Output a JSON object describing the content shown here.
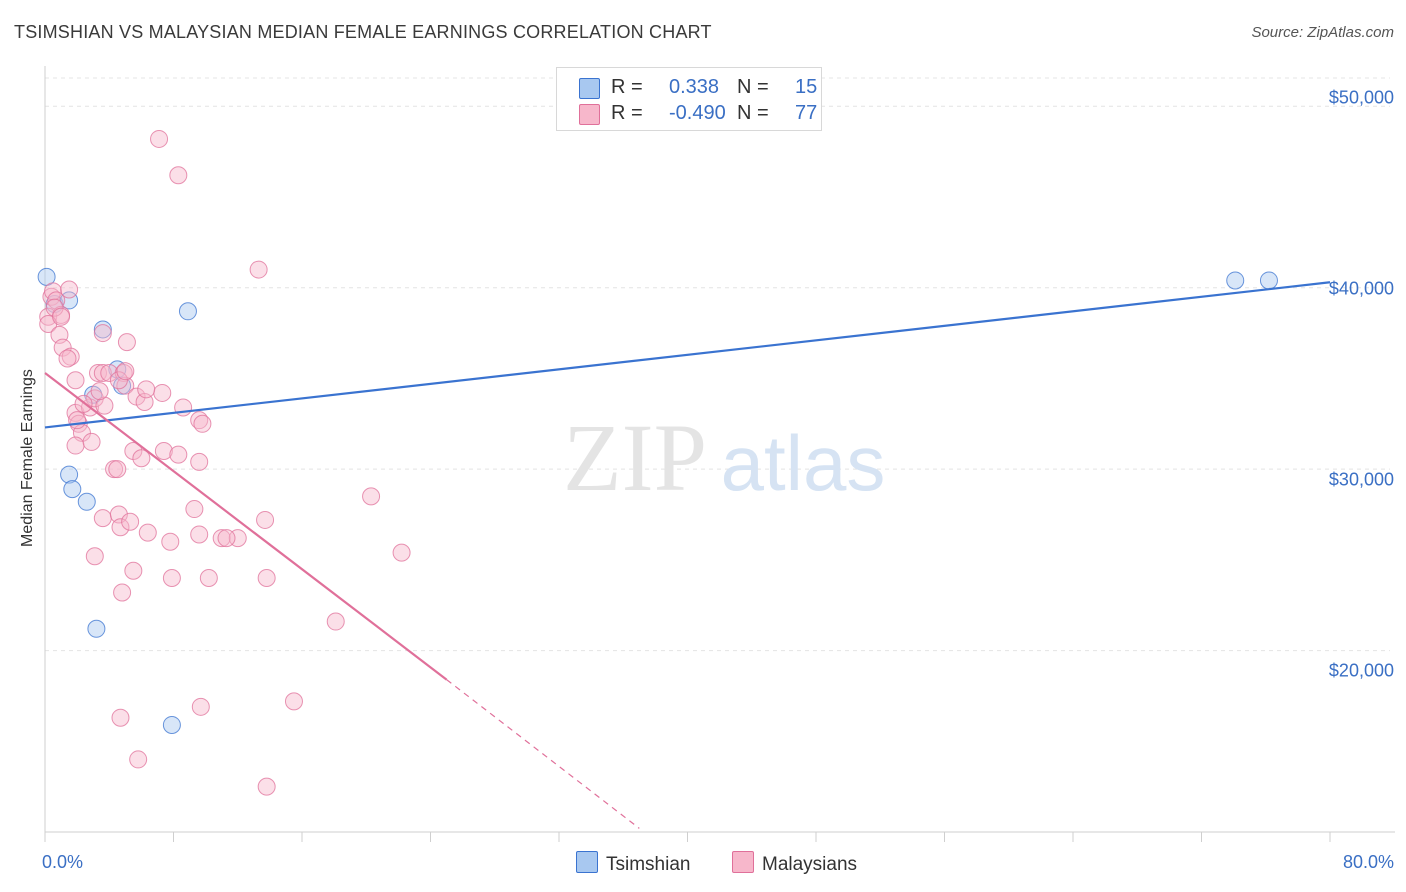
{
  "chart_data": {
    "type": "scatter",
    "title": "TSIMSHIAN VS MALAYSIAN MEDIAN FEMALE EARNINGS CORRELATION CHART",
    "source": "Source: ZipAtlas.com",
    "ylabel": "Median Female Earnings",
    "x_min_label": "0.0%",
    "x_max_label": "80.0%",
    "xlim": [
      0,
      80
    ],
    "ylim": [
      10000,
      52000
    ],
    "y_ticks": [
      {
        "value": 20000,
        "label": "$20,000"
      },
      {
        "value": 30000,
        "label": "$30,000"
      },
      {
        "value": 40000,
        "label": "$40,000"
      },
      {
        "value": 50000,
        "label": "$50,000"
      }
    ],
    "watermark": {
      "zip": "ZIP",
      "atlas": "atlas"
    },
    "legend_stats": [
      {
        "r_label": "R =",
        "r_value": "0.338",
        "n_label": "N =",
        "n_value": "15",
        "color": "#a8c8f0"
      },
      {
        "r_label": "R =",
        "r_value": "-0.490",
        "n_label": "N =",
        "n_value": "77",
        "color": "#f7b7cb"
      }
    ],
    "series": [
      {
        "name": "Tsimshian",
        "color": "#3a73d0",
        "fill": "#a8c8f0",
        "trend": {
          "x0": 0,
          "y0": 32300,
          "x1": 80,
          "y1": 40300
        },
        "points": [
          [
            0.1,
            40600
          ],
          [
            0.6,
            39100
          ],
          [
            1.5,
            39300
          ],
          [
            3.6,
            37700
          ],
          [
            8.9,
            38700
          ],
          [
            4.5,
            35500
          ],
          [
            4.8,
            34600
          ],
          [
            3.0,
            34100
          ],
          [
            1.5,
            29700
          ],
          [
            1.7,
            28900
          ],
          [
            2.6,
            28200
          ],
          [
            3.2,
            21200
          ],
          [
            7.9,
            15900
          ],
          [
            74.1,
            40400
          ],
          [
            76.2,
            40400
          ]
        ]
      },
      {
        "name": "Malaysians",
        "color": "#e0709a",
        "fill": "#f7b7cb",
        "trend": {
          "x0": 0,
          "y0": 35300,
          "x1": 25,
          "y1": 18400,
          "dash_x1": 37,
          "dash_y1": 10200
        },
        "points": [
          [
            0.2,
            38400
          ],
          [
            0.4,
            39500
          ],
          [
            0.5,
            39800
          ],
          [
            0.7,
            39300
          ],
          [
            1.0,
            38500
          ],
          [
            0.2,
            38000
          ],
          [
            1.5,
            39900
          ],
          [
            0.9,
            37400
          ],
          [
            1.1,
            36700
          ],
          [
            1.6,
            36200
          ],
          [
            1.9,
            34900
          ],
          [
            1.9,
            33100
          ],
          [
            2.1,
            32500
          ],
          [
            2.3,
            32000
          ],
          [
            1.9,
            31300
          ],
          [
            2.8,
            33400
          ],
          [
            2.9,
            31500
          ],
          [
            3.1,
            33900
          ],
          [
            3.7,
            33500
          ],
          [
            3.6,
            37500
          ],
          [
            3.3,
            35300
          ],
          [
            3.6,
            35300
          ],
          [
            4.0,
            35300
          ],
          [
            4.9,
            35300
          ],
          [
            5.0,
            34600
          ],
          [
            5.1,
            37000
          ],
          [
            5.7,
            34000
          ],
          [
            6.2,
            33700
          ],
          [
            7.3,
            34200
          ],
          [
            7.4,
            31000
          ],
          [
            8.6,
            33400
          ],
          [
            9.6,
            32700
          ],
          [
            9.8,
            32500
          ],
          [
            5.5,
            31000
          ],
          [
            6.0,
            30600
          ],
          [
            9.6,
            30400
          ],
          [
            4.3,
            30000
          ],
          [
            4.5,
            30000
          ],
          [
            3.6,
            27300
          ],
          [
            4.6,
            27500
          ],
          [
            4.7,
            26800
          ],
          [
            5.3,
            27100
          ],
          [
            6.4,
            26500
          ],
          [
            7.8,
            26000
          ],
          [
            9.6,
            26400
          ],
          [
            11.0,
            26200
          ],
          [
            12.0,
            26200
          ],
          [
            13.7,
            27200
          ],
          [
            9.3,
            27800
          ],
          [
            8.3,
            30800
          ],
          [
            11.3,
            26200
          ],
          [
            20.3,
            28500
          ],
          [
            3.1,
            25200
          ],
          [
            5.5,
            24400
          ],
          [
            7.9,
            24000
          ],
          [
            10.2,
            24000
          ],
          [
            13.8,
            24000
          ],
          [
            22.2,
            25400
          ],
          [
            4.8,
            23200
          ],
          [
            18.1,
            21600
          ],
          [
            15.5,
            17200
          ],
          [
            9.7,
            16900
          ],
          [
            4.7,
            16300
          ],
          [
            5.8,
            14000
          ],
          [
            13.8,
            12500
          ],
          [
            7.1,
            48200
          ],
          [
            8.3,
            46200
          ],
          [
            13.3,
            41000
          ],
          [
            3.4,
            34300
          ],
          [
            2.0,
            32700
          ],
          [
            2.4,
            33600
          ],
          [
            1.4,
            36100
          ],
          [
            0.6,
            38900
          ],
          [
            1.0,
            38400
          ],
          [
            4.6,
            34900
          ],
          [
            5.0,
            35400
          ],
          [
            6.3,
            34400
          ]
        ]
      }
    ]
  }
}
